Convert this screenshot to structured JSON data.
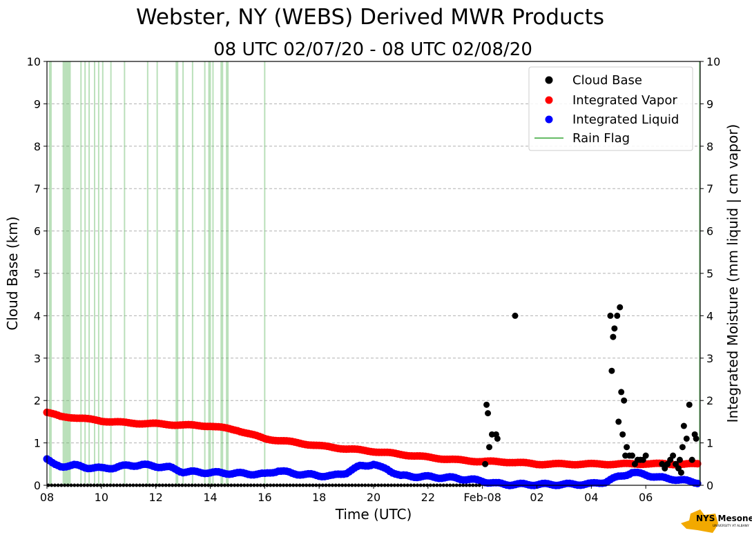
{
  "chart_data": {
    "type": "scatter",
    "title": "Webster, NY (WEBS) Derived MWR Products",
    "subtitle": "08 UTC 02/07/20 - 08 UTC 02/08/20",
    "xlabel": "Time (UTC)",
    "ylabel_left": "Cloud Base (km)",
    "ylabel_right": "Integrated Moisture (mm liquid | cm vapor)",
    "xlim": [
      0,
      24
    ],
    "ylim": [
      0,
      10
    ],
    "grid": "horizontal dashed",
    "x_ticks": [
      {
        "x": 0,
        "label": "08"
      },
      {
        "x": 2,
        "label": "10"
      },
      {
        "x": 4,
        "label": "12"
      },
      {
        "x": 6,
        "label": "14"
      },
      {
        "x": 8,
        "label": "16"
      },
      {
        "x": 10,
        "label": "18"
      },
      {
        "x": 12,
        "label": "20"
      },
      {
        "x": 14,
        "label": "22"
      },
      {
        "x": 16,
        "label": "Feb-08"
      },
      {
        "x": 18,
        "label": "02"
      },
      {
        "x": 20,
        "label": "04"
      },
      {
        "x": 22,
        "label": "06"
      }
    ],
    "y_ticks": [
      "0",
      "1",
      "2",
      "3",
      "4",
      "5",
      "6",
      "7",
      "8",
      "9",
      "10"
    ],
    "legend_position": "top-right",
    "legend": [
      {
        "name": "Cloud Base",
        "color": "#000000",
        "kind": "dot"
      },
      {
        "name": "Integrated Vapor",
        "color": "#ff0000",
        "kind": "dot"
      },
      {
        "name": "Integrated Liquid",
        "color": "#0000ff",
        "kind": "dot"
      },
      {
        "name": "Rain Flag",
        "color": "#66bb66",
        "kind": "line"
      }
    ],
    "series": [
      {
        "name": "Cloud Base",
        "color": "#000000",
        "x": [
          16.1,
          16.15,
          16.2,
          16.25,
          16.35,
          16.5,
          16.55,
          17.2,
          20.7,
          20.75,
          20.8,
          20.85,
          20.95,
          21.0,
          21.05,
          21.1,
          21.15,
          21.2,
          21.25,
          21.3,
          21.4,
          21.5,
          21.6,
          21.7,
          21.8,
          21.9,
          22.0,
          22.6,
          22.7,
          22.8,
          22.9,
          23.0,
          23.1,
          23.2,
          23.25,
          23.3,
          23.35,
          23.4,
          23.5,
          23.6,
          23.7,
          23.8,
          23.85
        ],
        "y": [
          0.5,
          1.9,
          1.7,
          0.9,
          1.2,
          1.2,
          1.1,
          4.0,
          4.0,
          2.7,
          3.5,
          3.7,
          4.0,
          1.5,
          4.2,
          2.2,
          1.2,
          2.0,
          0.7,
          0.9,
          0.7,
          0.7,
          0.5,
          0.6,
          0.6,
          0.6,
          0.7,
          0.5,
          0.4,
          0.5,
          0.6,
          0.7,
          0.5,
          0.4,
          0.6,
          0.3,
          0.9,
          1.4,
          1.1,
          1.9,
          0.6,
          1.2,
          1.1
        ]
      },
      {
        "name": "Integrated Vapor",
        "color": "#ff0000",
        "x": [
          0,
          0.5,
          1,
          2,
          3,
          4,
          5,
          6,
          7,
          8,
          9,
          10,
          11,
          12,
          13,
          14,
          15,
          16,
          17,
          18,
          19,
          20,
          21,
          22,
          23,
          24
        ],
        "y": [
          1.72,
          1.62,
          1.6,
          1.52,
          1.47,
          1.45,
          1.42,
          1.4,
          1.3,
          1.1,
          1.02,
          0.93,
          0.86,
          0.8,
          0.73,
          0.66,
          0.6,
          0.56,
          0.55,
          0.5,
          0.5,
          0.5,
          0.5,
          0.51,
          0.5,
          0.5
        ]
      },
      {
        "name": "Integrated Liquid",
        "color": "#0000ff",
        "x": [
          0,
          0.25,
          0.5,
          1,
          1.5,
          2,
          2.5,
          3,
          3.5,
          4,
          4.5,
          5,
          6,
          7,
          8,
          8.5,
          9,
          10,
          10.5,
          11,
          11.5,
          12,
          12.25,
          12.5,
          13,
          14,
          15,
          16,
          16.5,
          17,
          18,
          19,
          20,
          20.5,
          21,
          21.5,
          22,
          22.5,
          23,
          23.5,
          24
        ],
        "y": [
          0.62,
          0.48,
          0.45,
          0.47,
          0.42,
          0.4,
          0.42,
          0.47,
          0.48,
          0.45,
          0.42,
          0.32,
          0.3,
          0.28,
          0.26,
          0.35,
          0.28,
          0.23,
          0.22,
          0.3,
          0.45,
          0.5,
          0.42,
          0.38,
          0.22,
          0.2,
          0.17,
          0.1,
          0.04,
          0.02,
          0.02,
          0.02,
          0.03,
          0.08,
          0.2,
          0.3,
          0.25,
          0.18,
          0.15,
          0.1,
          0.06
        ]
      },
      {
        "name": "Rain Flag",
        "color": "#66bb66",
        "kind": "vertical-lines",
        "x": [
          0.1,
          0.15,
          0.6,
          0.65,
          0.7,
          0.75,
          0.8,
          0.85,
          1.25,
          1.4,
          1.55,
          1.75,
          1.9,
          2.05,
          2.35,
          2.85,
          3.7,
          4.05,
          4.75,
          4.8,
          5.0,
          5.35,
          5.8,
          5.95,
          6.0,
          6.1,
          6.4,
          6.45,
          6.6,
          6.65,
          8.0
        ]
      }
    ]
  },
  "logo": {
    "text": "NYS Mesonet",
    "sub": "UNIVERSITY AT ALBANY"
  }
}
